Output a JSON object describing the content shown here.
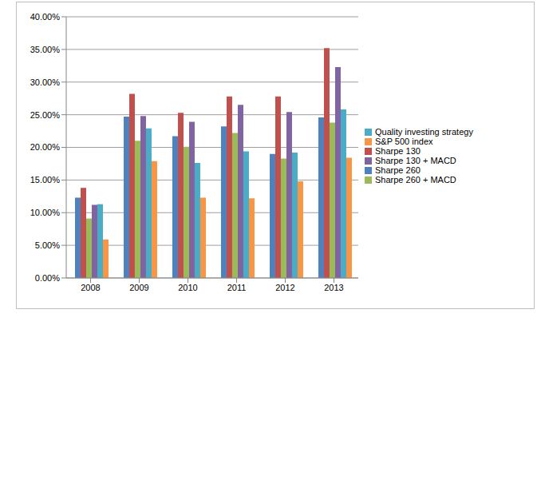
{
  "chart_data": {
    "type": "bar",
    "categories": [
      "2008",
      "2009",
      "2010",
      "2011",
      "2012",
      "2013"
    ],
    "series": [
      {
        "name": "Sharpe 260",
        "color": "#4f81bd",
        "values": [
          12.3,
          24.7,
          21.7,
          23.2,
          19.0,
          24.6
        ]
      },
      {
        "name": "Sharpe 130",
        "color": "#c0504d",
        "values": [
          13.8,
          28.2,
          25.3,
          27.8,
          27.8,
          35.2
        ]
      },
      {
        "name": "Sharpe 260 + MACD",
        "color": "#9bbb59",
        "values": [
          9.1,
          21.0,
          20.1,
          22.2,
          18.3,
          23.8
        ]
      },
      {
        "name": "Sharpe 130 + MACD",
        "color": "#8064a2",
        "values": [
          11.2,
          24.8,
          23.9,
          26.5,
          25.4,
          32.3
        ]
      },
      {
        "name": "Quality investing strategy",
        "color": "#4bacc6",
        "values": [
          11.3,
          22.9,
          17.6,
          19.4,
          19.2,
          25.8
        ]
      },
      {
        "name": "S&P 500 index",
        "color": "#f79646",
        "values": [
          5.9,
          17.9,
          12.3,
          12.2,
          14.8,
          18.4
        ]
      }
    ],
    "ylim": [
      0,
      40
    ],
    "yticks": [
      {
        "value": 0,
        "label": "0.00%"
      },
      {
        "value": 5,
        "label": "5.00%"
      },
      {
        "value": 10,
        "label": "10.00%"
      },
      {
        "value": 15,
        "label": "15.00%"
      },
      {
        "value": 20,
        "label": "20.00%"
      },
      {
        "value": 25,
        "label": "25.00%"
      },
      {
        "value": 30,
        "label": "30.00%"
      },
      {
        "value": 35,
        "label": "35.00%"
      },
      {
        "value": 40,
        "label": "40.00%"
      }
    ],
    "grid": true,
    "legend": "right"
  }
}
